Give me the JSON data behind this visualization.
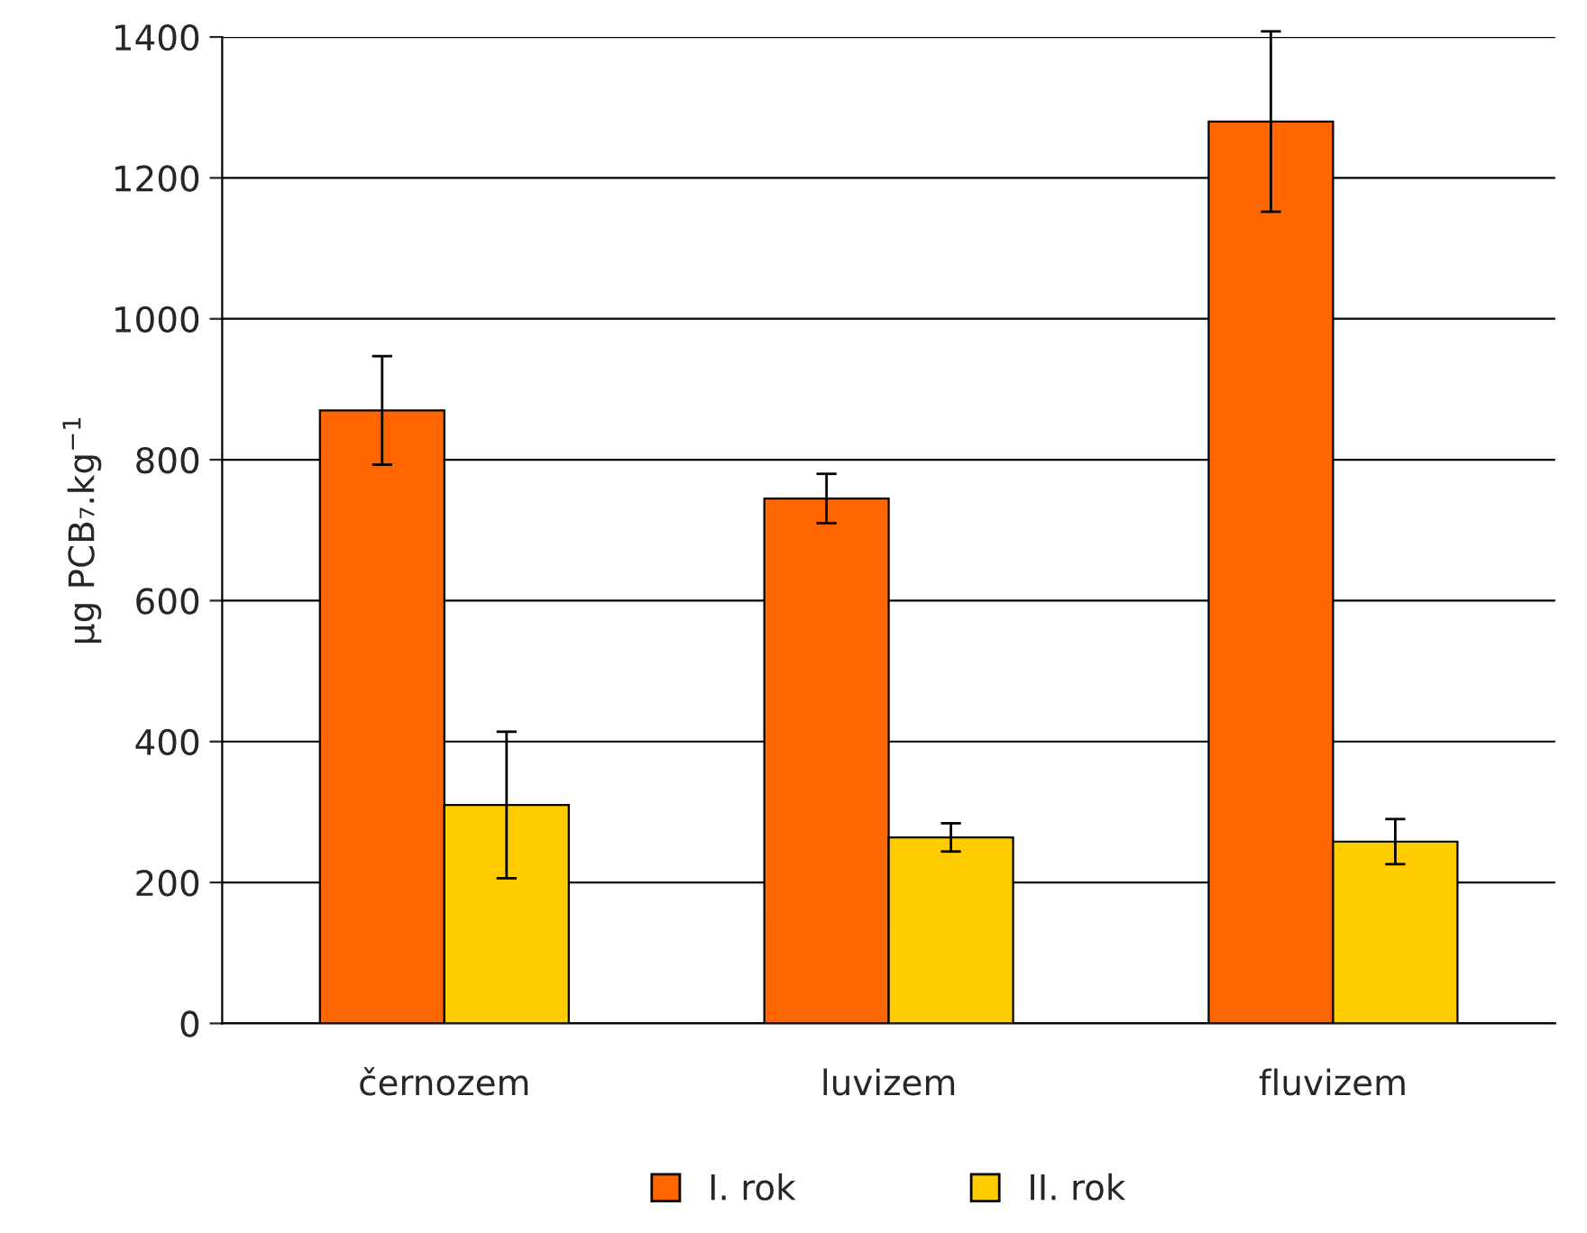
{
  "chart_data": {
    "type": "bar",
    "ylabel": "µg PCB₇.kg$^{−1}$",
    "categories": [
      "černozem",
      "luvizem",
      "fluvizem"
    ],
    "series": [
      {
        "name": "I. rok",
        "color": "#ff6600",
        "values": [
          870,
          745,
          1280
        ],
        "errors": [
          77,
          35,
          128
        ]
      },
      {
        "name": "II. rok",
        "color": "#ffcc00",
        "values": [
          310,
          264,
          258
        ],
        "errors": [
          104,
          20,
          32
        ]
      }
    ],
    "ylim": [
      0,
      1400
    ],
    "yticks": [
      0,
      200,
      400,
      600,
      800,
      1000,
      1200,
      1400
    ],
    "grid": "y",
    "legend": "bottom"
  }
}
